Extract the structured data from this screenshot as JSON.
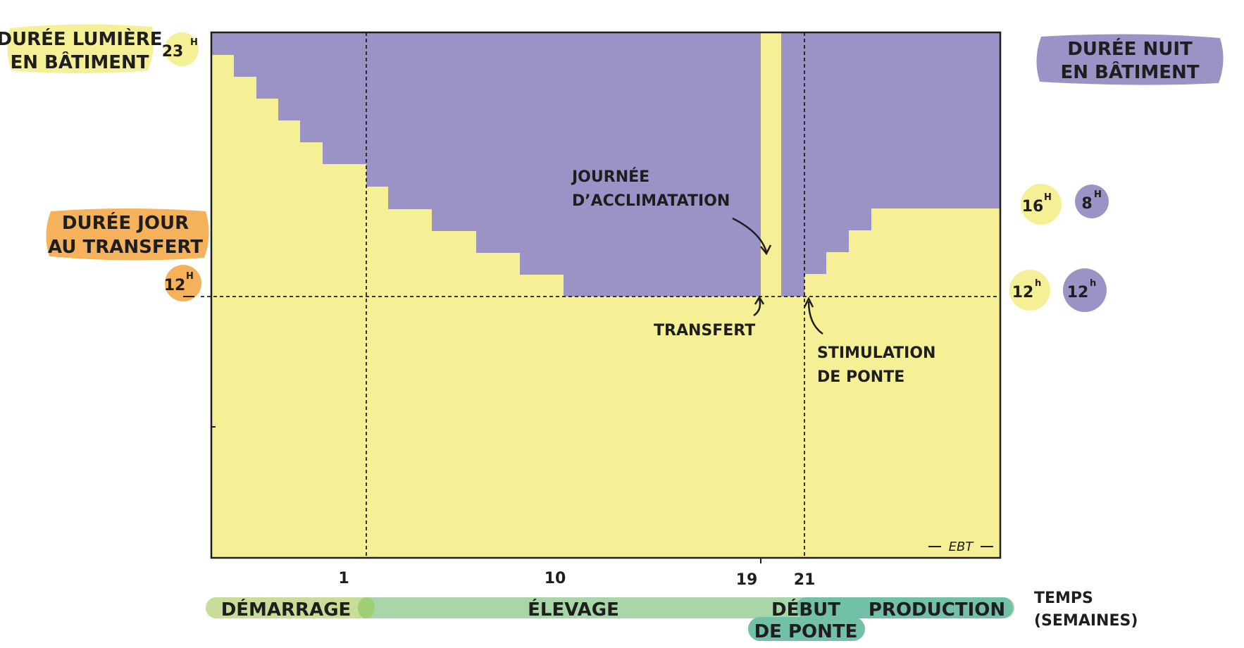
{
  "chart_data": {
    "type": "area",
    "xlabel": "TEMPS (SEMAINES)",
    "ylabel": "",
    "y_unit": "heures",
    "y_range_hours": [
      0,
      24
    ],
    "x_ticks": [
      "1",
      "10",
      "19",
      "21"
    ],
    "series": [
      {
        "name": "Durée jour (lumière) en bâtiment",
        "color": "#f5ef96",
        "points_hours": [
          {
            "x": 0,
            "y": 23
          },
          {
            "x": 1,
            "y": 22
          },
          {
            "x": 2,
            "y": 21
          },
          {
            "x": 3,
            "y": 20
          },
          {
            "x": 4,
            "y": 19
          },
          {
            "x": 5,
            "y": 18
          },
          {
            "x": 7,
            "y": 17
          },
          {
            "x": 8,
            "y": 16
          },
          {
            "x": 10,
            "y": 15
          },
          {
            "x": 12,
            "y": 14
          },
          {
            "x": 14,
            "y": 13
          },
          {
            "x": 16,
            "y": 12
          },
          {
            "x": 19,
            "y": 24
          },
          {
            "x": 20,
            "y": 12
          },
          {
            "x": 21,
            "y": 13
          },
          {
            "x": 22,
            "y": 14
          },
          {
            "x": 23,
            "y": 15
          },
          {
            "x": 24,
            "y": 16
          },
          {
            "x": 30,
            "y": 16
          }
        ]
      },
      {
        "name": "Durée nuit en bâtiment",
        "color": "#9b93c6"
      }
    ],
    "reference_line_hours": 12
  },
  "labels": {
    "duree_lumiere": [
      "DURÉE LUMIÈRE",
      "EN BÂTIMENT"
    ],
    "duree_nuit": [
      "DURÉE NUIT",
      "EN BÂTIMENT"
    ],
    "duree_jour_transfert": [
      "DURÉE JOUR",
      "AU TRANSFERT"
    ],
    "h23": "23",
    "h23_sup": "H",
    "h12_left": "12",
    "h12_left_sup": "H",
    "h16": "16",
    "h16_sup": "H",
    "h8": "8",
    "h8_sup": "H",
    "h12_right_day": "12",
    "h12_right_day_sup": "h",
    "h12_right_night": "12",
    "h12_right_night_sup": "h",
    "journee_acclimatation": [
      "JOURNÉE",
      "D’ACCLIMATATION"
    ],
    "transfert": "TRANSFERT",
    "stimulation_ponte": [
      "STIMULATION",
      "DE PONTE"
    ],
    "temps": [
      "TEMPS",
      "(SEMAINES)"
    ],
    "signature": "EBT"
  },
  "phases": {
    "demarrage": "DÉMARRAGE",
    "elevage": "ÉLEVAGE",
    "debut_ponte": [
      "DÉBUT",
      "DE PONTE"
    ],
    "production": "PRODUCTION"
  },
  "colors": {
    "day": "#f5ef96",
    "night": "#9b93c6",
    "orange": "#f6b25a",
    "phase_light_green": "#c9dd9a",
    "phase_green": "#a9d6a9",
    "phase_teal": "#71c0a7"
  }
}
